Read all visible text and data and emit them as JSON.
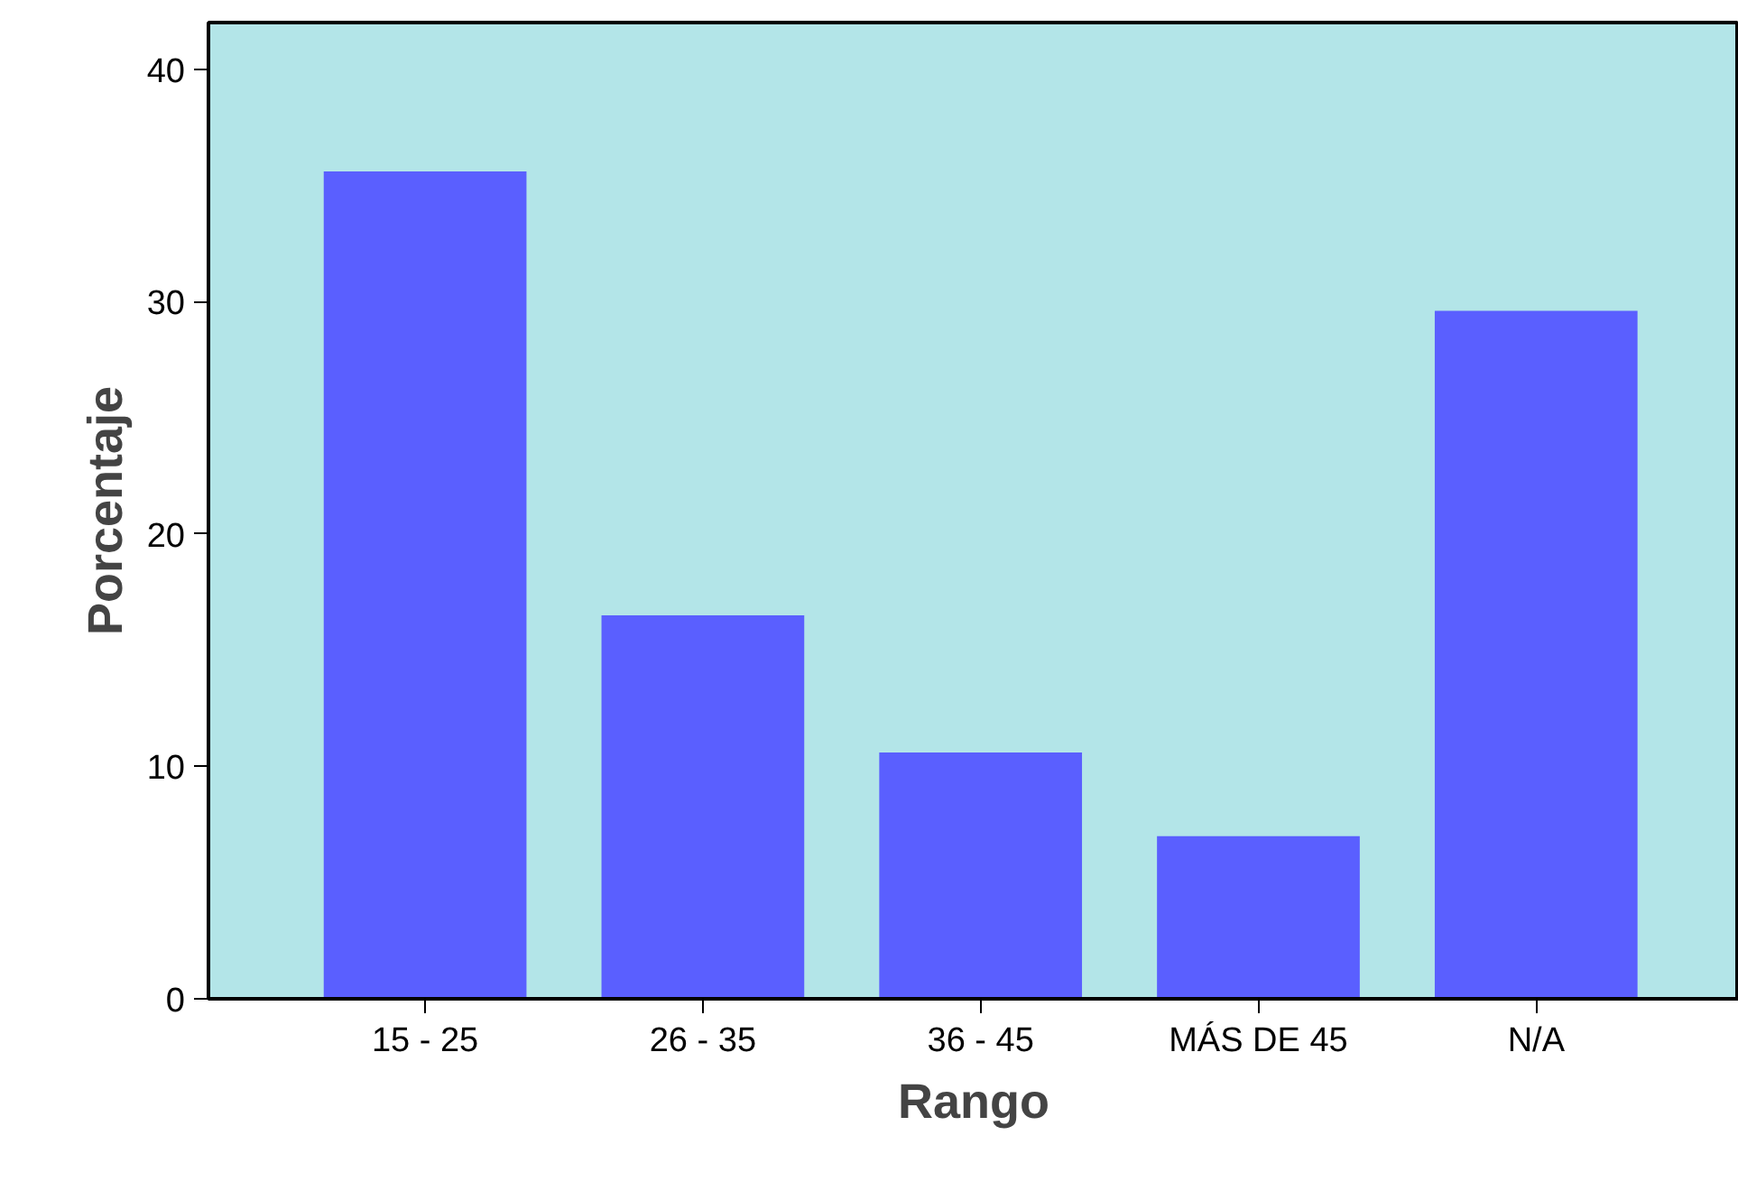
{
  "chart_data": {
    "type": "bar",
    "xlabel": "Rango",
    "ylabel": "Porcentaje",
    "categories": [
      "15 - 25",
      "26 - 35",
      "36 - 45",
      "MÁS DE 45",
      "N/A"
    ],
    "values": [
      35.6,
      16.5,
      10.6,
      7.0,
      29.6
    ],
    "color": "#5a5fff",
    "ylim": [
      0,
      42
    ],
    "yticks": [
      0,
      10,
      20,
      30,
      40
    ],
    "grid": false
  }
}
